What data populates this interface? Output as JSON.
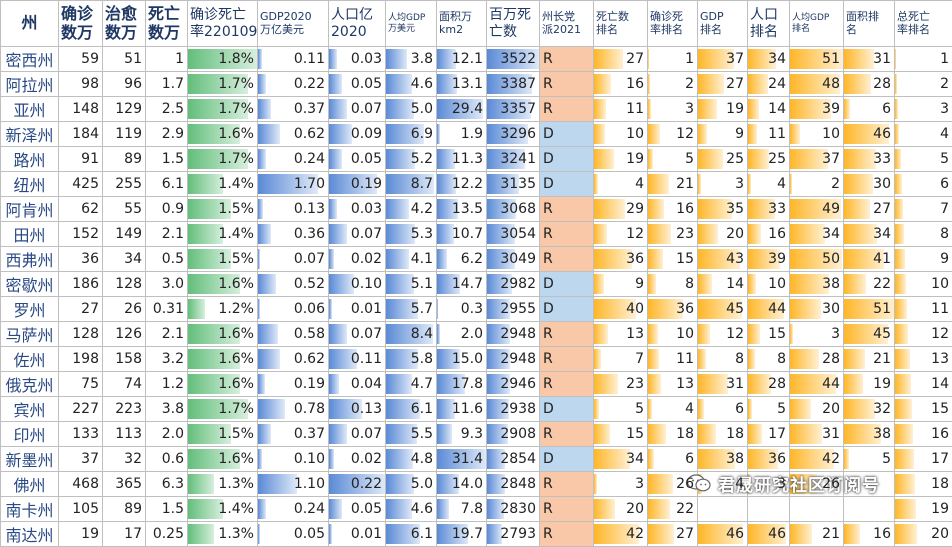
{
  "headers": [
    {
      "label": "州"
    },
    {
      "label": "确诊\n数万"
    },
    {
      "label": "治愈\n数万"
    },
    {
      "label": "死亡\n数万"
    },
    {
      "label": "确诊死亡\n率220109"
    },
    {
      "label": "GDP2020\n万亿美元"
    },
    {
      "label": "人口亿\n2020"
    },
    {
      "label": "人均GDP\n万美元"
    },
    {
      "label": "面积万\nkm2"
    },
    {
      "label": "百万死\n亡数"
    },
    {
      "label": "州长党\n派2021"
    },
    {
      "label": "死亡数\n排名"
    },
    {
      "label": "确诊死\n率排名"
    },
    {
      "label": "GDP\n排名"
    },
    {
      "label": "人口\n排名"
    },
    {
      "label": "人均GDP\n排名"
    },
    {
      "label": "面积排\n名"
    },
    {
      "label": "总死亡\n率排名"
    }
  ],
  "rows": [
    [
      "密西州",
      "59",
      "51",
      "1",
      "1.8%",
      "0.11",
      "0.03",
      "3.8",
      "12.1",
      "3522",
      "R",
      "27",
      "1",
      "37",
      "34",
      "51",
      "31",
      "1"
    ],
    [
      "阿拉州",
      "98",
      "96",
      "1.7",
      "1.7%",
      "0.22",
      "0.05",
      "4.6",
      "13.1",
      "3387",
      "R",
      "16",
      "2",
      "27",
      "24",
      "48",
      "28",
      "2"
    ],
    [
      "亚州",
      "148",
      "129",
      "2.5",
      "1.7%",
      "0.37",
      "0.07",
      "5.0",
      "29.4",
      "3357",
      "R",
      "11",
      "3",
      "19",
      "14",
      "39",
      "6",
      "3"
    ],
    [
      "新泽州",
      "184",
      "119",
      "2.9",
      "1.6%",
      "0.62",
      "0.09",
      "6.9",
      "1.9",
      "3296",
      "D",
      "10",
      "12",
      "9",
      "11",
      "10",
      "46",
      "4"
    ],
    [
      "路州",
      "91",
      "89",
      "1.5",
      "1.7%",
      "0.24",
      "0.05",
      "5.2",
      "11.3",
      "3241",
      "D",
      "19",
      "5",
      "25",
      "25",
      "37",
      "33",
      "5"
    ],
    [
      "纽州",
      "425",
      "255",
      "6.1",
      "1.4%",
      "1.70",
      "0.19",
      "8.7",
      "12.2",
      "3135",
      "D",
      "4",
      "21",
      "3",
      "4",
      "2",
      "30",
      "6"
    ],
    [
      "阿肯州",
      "62",
      "55",
      "0.9",
      "1.5%",
      "0.13",
      "0.03",
      "4.2",
      "13.5",
      "3068",
      "R",
      "29",
      "16",
      "35",
      "33",
      "49",
      "27",
      "7"
    ],
    [
      "田州",
      "152",
      "149",
      "2.1",
      "1.4%",
      "0.36",
      "0.07",
      "5.3",
      "10.7",
      "3054",
      "R",
      "12",
      "23",
      "20",
      "16",
      "34",
      "34",
      "8"
    ],
    [
      "西弗州",
      "36",
      "34",
      "0.5",
      "1.5%",
      "0.07",
      "0.02",
      "4.1",
      "6.2",
      "3049",
      "R",
      "36",
      "15",
      "43",
      "39",
      "50",
      "41",
      "9"
    ],
    [
      "密歇州",
      "186",
      "128",
      "3.0",
      "1.6%",
      "0.52",
      "0.10",
      "5.1",
      "14.7",
      "2982",
      "D",
      "9",
      "8",
      "14",
      "10",
      "38",
      "22",
      "10"
    ],
    [
      "罗州",
      "27",
      "26",
      "0.31",
      "1.2%",
      "0.06",
      "0.01",
      "5.7",
      "0.3",
      "2955",
      "D",
      "40",
      "36",
      "45",
      "44",
      "30",
      "51",
      "11"
    ],
    [
      "马萨州",
      "128",
      "126",
      "2.1",
      "1.6%",
      "0.58",
      "0.07",
      "8.4",
      "2.0",
      "2948",
      "R",
      "13",
      "10",
      "12",
      "15",
      "3",
      "45",
      "12"
    ],
    [
      "佐州",
      "198",
      "158",
      "3.2",
      "1.6%",
      "0.62",
      "0.11",
      "5.8",
      "15.0",
      "2948",
      "R",
      "7",
      "11",
      "8",
      "8",
      "28",
      "21",
      "13"
    ],
    [
      "俄克州",
      "75",
      "74",
      "1.2",
      "1.6%",
      "0.19",
      "0.04",
      "4.7",
      "17.8",
      "2946",
      "R",
      "23",
      "13",
      "31",
      "28",
      "44",
      "19",
      "14"
    ],
    [
      "宾州",
      "227",
      "223",
      "3.8",
      "1.7%",
      "0.78",
      "0.13",
      "6.1",
      "11.6",
      "2938",
      "D",
      "5",
      "4",
      "6",
      "5",
      "20",
      "32",
      "15"
    ],
    [
      "印州",
      "133",
      "113",
      "2.0",
      "1.5%",
      "0.37",
      "0.07",
      "5.5",
      "9.3",
      "2908",
      "R",
      "15",
      "18",
      "18",
      "17",
      "31",
      "38",
      "16"
    ],
    [
      "新墨州",
      "37",
      "32",
      "0.6",
      "1.6%",
      "0.10",
      "0.02",
      "4.8",
      "31.4",
      "2854",
      "D",
      "34",
      "6",
      "38",
      "36",
      "42",
      "5",
      "17"
    ],
    [
      "佛州",
      "468",
      "365",
      "6.3",
      "1.3%",
      "1.10",
      "0.22",
      "5.0",
      "14.0",
      "2848",
      "R",
      "3",
      "26",
      "4",
      "3",
      "26",
      "",
      "18"
    ],
    [
      "南卡州",
      "105",
      "89",
      "1.5",
      "1.4%",
      "0.24",
      "0.05",
      "4.6",
      "7.8",
      "2830",
      "R",
      "20",
      "22",
      "",
      "",
      "",
      "",
      "19"
    ],
    [
      "南达州",
      "19",
      "17",
      "0.25",
      "1.3%",
      "0.05",
      "0.01",
      "6.1",
      "19.7",
      "2793",
      "R",
      "42",
      "27",
      "46",
      "46",
      "21",
      "16",
      "20"
    ]
  ],
  "bar_columns": {
    "4": {
      "color": "green",
      "min": 1.0,
      "max": 1.8
    },
    "5": {
      "color": "blue",
      "min": 0,
      "max": 2.0
    },
    "6": {
      "color": "blue",
      "min": 0,
      "max": 0.22
    },
    "7": {
      "color": "blue",
      "min": 0,
      "max": 9.0
    },
    "8": {
      "color": "blue",
      "min": 0,
      "max": 31.4
    },
    "9": {
      "color": "blue",
      "min": 2500,
      "max": 3522
    },
    "11": {
      "color": "orange",
      "min": 0,
      "max": 50
    },
    "12": {
      "color": "orange",
      "min": 0,
      "max": 50
    },
    "13": {
      "color": "orange",
      "min": 0,
      "max": 50
    },
    "14": {
      "color": "orange",
      "min": 0,
      "max": 50
    },
    "15": {
      "color": "orange",
      "min": 0,
      "max": 51
    },
    "16": {
      "color": "orange",
      "min": 0,
      "max": 51
    },
    "17": {
      "color": "orange",
      "min": 0,
      "max": 51
    }
  },
  "party_colors": {
    "R": "#f8c8a8",
    "D": "#bdd7ee"
  },
  "watermark": {
    "text": "君晟研究社区订阅号",
    "icon": "wechat-icon"
  }
}
